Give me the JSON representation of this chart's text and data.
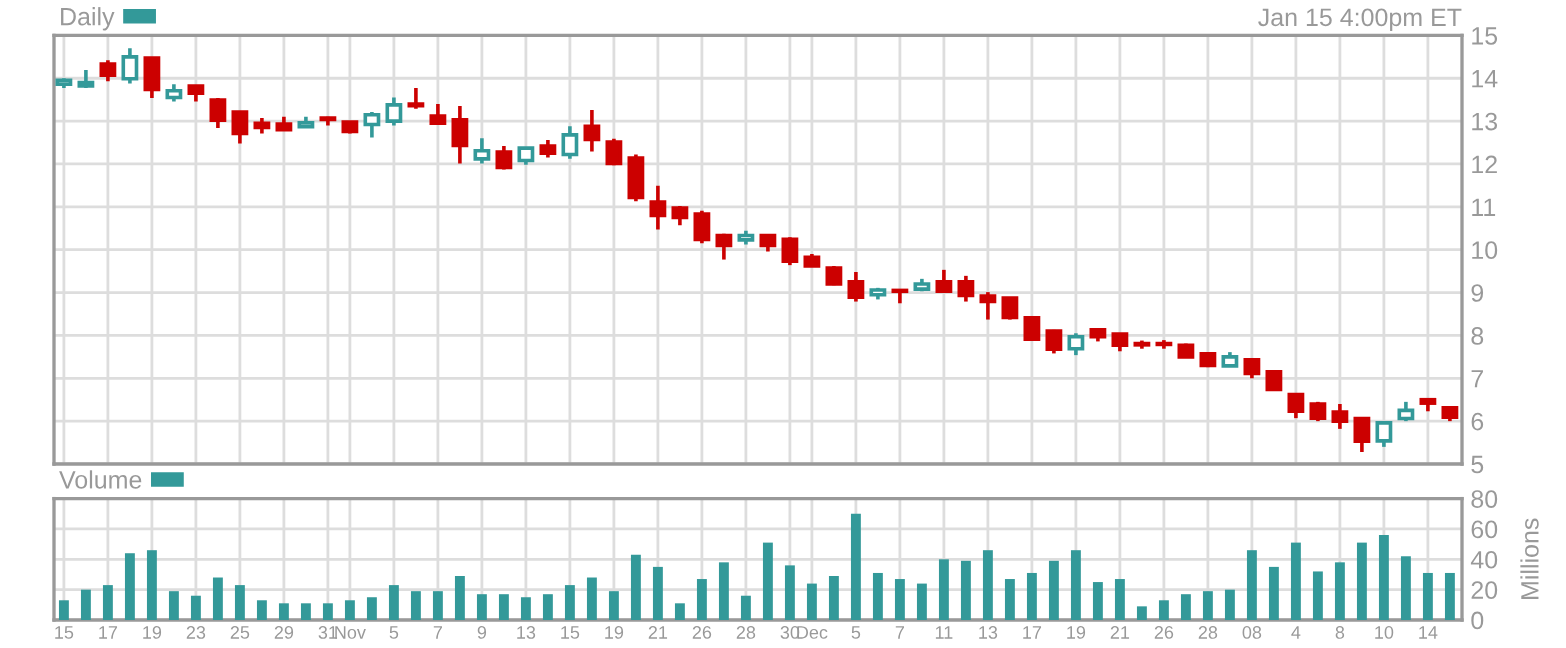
{
  "chart_data": [
    {
      "type": "candlestick",
      "series": [
        {
          "name": "Daily",
          "color": "#339999",
          "ohlc": [
            [
              13.86,
              14.0,
              13.77,
              13.95
            ],
            [
              13.82,
              14.19,
              13.77,
              13.9
            ],
            [
              14.33,
              14.42,
              13.93,
              14.07
            ],
            [
              13.99,
              14.7,
              13.88,
              14.5
            ],
            [
              14.47,
              14.47,
              13.54,
              13.74
            ],
            [
              13.55,
              13.86,
              13.46,
              13.71
            ],
            [
              13.82,
              13.82,
              13.46,
              13.65
            ],
            [
              13.49,
              13.54,
              12.84,
              13.02
            ],
            [
              13.21,
              13.21,
              12.48,
              12.71
            ],
            [
              12.95,
              13.07,
              12.71,
              12.85
            ],
            [
              12.93,
              13.1,
              12.8,
              12.8
            ],
            [
              12.87,
              13.1,
              12.87,
              12.96
            ],
            [
              13.07,
              13.1,
              12.9,
              13.04
            ],
            [
              12.98,
              12.98,
              12.71,
              12.76
            ],
            [
              12.92,
              13.21,
              12.62,
              13.15
            ],
            [
              13.0,
              13.55,
              12.9,
              13.38
            ],
            [
              13.4,
              13.77,
              13.29,
              13.36
            ],
            [
              13.12,
              13.4,
              12.95,
              12.95
            ],
            [
              13.03,
              13.35,
              12.01,
              12.43
            ],
            [
              12.12,
              12.6,
              12.01,
              12.31
            ],
            [
              12.28,
              12.42,
              11.87,
              11.92
            ],
            [
              12.08,
              12.37,
              11.98,
              12.37
            ],
            [
              12.42,
              12.56,
              12.15,
              12.25
            ],
            [
              12.22,
              12.88,
              12.12,
              12.68
            ],
            [
              12.88,
              13.26,
              12.29,
              12.57
            ],
            [
              12.51,
              12.59,
              11.97,
              12.01
            ],
            [
              12.14,
              12.22,
              11.13,
              11.22
            ],
            [
              11.11,
              11.49,
              10.47,
              10.8
            ],
            [
              10.97,
              11.02,
              10.57,
              10.75
            ],
            [
              10.83,
              10.91,
              10.15,
              10.24
            ],
            [
              10.33,
              10.37,
              9.77,
              10.1
            ],
            [
              10.23,
              10.44,
              10.12,
              10.33
            ],
            [
              10.33,
              10.36,
              9.96,
              10.1
            ],
            [
              10.24,
              10.29,
              9.64,
              9.73
            ],
            [
              9.82,
              9.9,
              9.62,
              9.62
            ],
            [
              9.57,
              9.62,
              9.17,
              9.2
            ],
            [
              9.25,
              9.48,
              8.79,
              8.89
            ],
            [
              8.95,
              9.11,
              8.84,
              9.06
            ],
            [
              9.05,
              9.05,
              8.75,
              9.03
            ],
            [
              9.08,
              9.32,
              9.03,
              9.2
            ],
            [
              9.25,
              9.53,
              9.03,
              9.03
            ],
            [
              9.25,
              9.39,
              8.79,
              8.93
            ],
            [
              8.92,
              9.01,
              8.37,
              8.79
            ],
            [
              8.87,
              8.87,
              8.37,
              8.42
            ],
            [
              8.41,
              8.41,
              7.91,
              7.91
            ],
            [
              8.1,
              8.13,
              7.58,
              7.68
            ],
            [
              7.69,
              8.05,
              7.54,
              7.97
            ],
            [
              8.13,
              8.13,
              7.86,
              7.97
            ],
            [
              8.03,
              8.03,
              7.63,
              7.77
            ],
            [
              7.81,
              7.88,
              7.69,
              7.78
            ],
            [
              7.81,
              7.89,
              7.69,
              7.79
            ],
            [
              7.77,
              7.81,
              7.5,
              7.5
            ],
            [
              7.57,
              7.57,
              7.26,
              7.3
            ],
            [
              7.29,
              7.61,
              7.29,
              7.5
            ],
            [
              7.43,
              7.43,
              7.0,
              7.11
            ],
            [
              7.15,
              7.19,
              6.74,
              6.74
            ],
            [
              6.62,
              6.62,
              6.07,
              6.23
            ],
            [
              6.4,
              6.45,
              6.0,
              6.07
            ],
            [
              6.21,
              6.4,
              5.82,
              6.0
            ],
            [
              6.06,
              6.06,
              5.28,
              5.53
            ],
            [
              5.54,
              6.0,
              5.4,
              5.96
            ],
            [
              6.06,
              6.45,
              6.0,
              6.25
            ],
            [
              6.5,
              6.52,
              6.23,
              6.42
            ],
            [
              6.31,
              6.31,
              6.0,
              6.09
            ]
          ],
          "colors": [
            "#339999",
            "#339999",
            "#cc0000",
            "#339999",
            "#cc0000",
            "#339999",
            "#cc0000",
            "#cc0000",
            "#cc0000",
            "#cc0000",
            "#cc0000",
            "#339999",
            "#cc0000",
            "#cc0000",
            "#339999",
            "#339999",
            "#cc0000",
            "#cc0000",
            "#cc0000",
            "#339999",
            "#cc0000",
            "#339999",
            "#cc0000",
            "#339999",
            "#cc0000",
            "#cc0000",
            "#cc0000",
            "#cc0000",
            "#cc0000",
            "#cc0000",
            "#cc0000",
            "#339999",
            "#cc0000",
            "#cc0000",
            "#cc0000",
            "#cc0000",
            "#cc0000",
            "#339999",
            "#cc0000",
            "#339999",
            "#cc0000",
            "#cc0000",
            "#cc0000",
            "#cc0000",
            "#cc0000",
            "#cc0000",
            "#339999",
            "#cc0000",
            "#cc0000",
            "#cc0000",
            "#cc0000",
            "#cc0000",
            "#cc0000",
            "#339999",
            "#cc0000",
            "#cc0000",
            "#cc0000",
            "#cc0000",
            "#cc0000",
            "#cc0000",
            "#339999",
            "#339999",
            "#cc0000",
            "#cc0000"
          ]
        }
      ],
      "ylim": [
        5,
        15
      ],
      "yticks": [
        5,
        6,
        7,
        8,
        9,
        10,
        11,
        12,
        13,
        14,
        15
      ],
      "grid": true,
      "legend": "top left",
      "tick_labels": "y",
      "annotations": [
        "Jan 15 4:00pm ET"
      ]
    },
    {
      "type": "bar",
      "categories": [
        "15",
        null,
        "17",
        null,
        "19",
        null,
        "23",
        null,
        "25",
        null,
        "29",
        null,
        "31",
        "Nov",
        null,
        "5",
        null,
        "7",
        null,
        "9",
        null,
        "13",
        null,
        "15",
        null,
        "19",
        null,
        "21",
        null,
        "26",
        null,
        "28",
        null,
        "30",
        "Dec",
        null,
        "5",
        null,
        "7",
        null,
        "11",
        null,
        "13",
        null,
        "17",
        null,
        "19",
        null,
        "21",
        null,
        "26",
        null,
        "28",
        null,
        "08",
        null,
        "4",
        null,
        "8",
        null,
        "10",
        null,
        "14",
        null
      ],
      "series": [
        {
          "name": "Volume",
          "color": "#339999",
          "values": [
            13,
            20,
            23,
            44,
            46,
            19,
            16,
            28,
            23,
            13,
            11,
            11,
            11,
            13,
            15,
            23,
            19,
            19,
            29,
            17,
            17,
            15,
            17,
            23,
            28,
            19,
            43,
            35,
            11,
            27,
            38,
            16,
            51,
            36,
            24,
            29,
            70,
            31,
            27,
            24,
            40,
            39,
            46,
            27,
            31,
            39,
            46,
            25,
            27,
            9,
            13,
            17,
            19,
            20,
            46,
            35,
            51,
            32,
            38,
            51,
            56,
            42,
            31,
            31
          ]
        }
      ],
      "ylim": [
        0,
        80
      ],
      "yticks": [
        0,
        20,
        40,
        60,
        80
      ],
      "ylabel": "Millions",
      "grid": true,
      "legend": "top left"
    }
  ]
}
